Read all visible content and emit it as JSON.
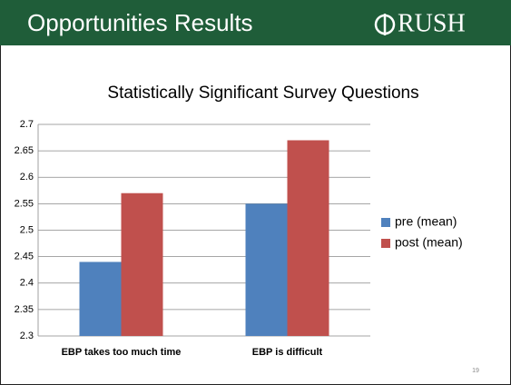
{
  "header": {
    "title": "Opportunities Results",
    "logo": "RUSH"
  },
  "page_number": "19",
  "chart_data": {
    "type": "bar",
    "title": "Statistically Significant Survey Questions",
    "categories": [
      "EBP takes too much time",
      "EBP is difficult"
    ],
    "series": [
      {
        "name": "pre (mean)",
        "color": "#4f81bd",
        "values": [
          2.44,
          2.55
        ]
      },
      {
        "name": "post (mean)",
        "color": "#c0504d",
        "values": [
          2.57,
          2.67
        ]
      }
    ],
    "ylim": [
      2.3,
      2.7
    ],
    "yticks": [
      2.3,
      2.35,
      2.4,
      2.45,
      2.5,
      2.55,
      2.6,
      2.65,
      2.7
    ],
    "grid": true,
    "legend": "right"
  }
}
